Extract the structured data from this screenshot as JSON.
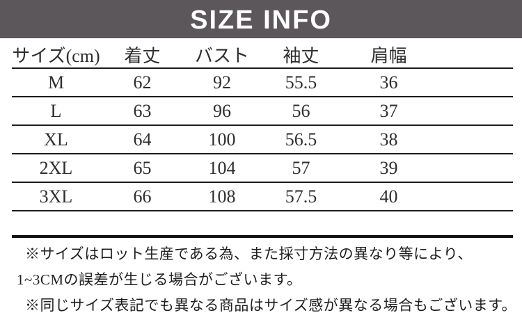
{
  "banner": {
    "title": "SIZE INFO",
    "bg_color": "#5c575b",
    "text_color": "#ffffff"
  },
  "table": {
    "headers": [
      "サイズ(cm)",
      "着丈",
      "バスト",
      "袖丈",
      "肩幅"
    ],
    "rows": [
      [
        "M",
        "62",
        "92",
        "55.5",
        "36"
      ],
      [
        "L",
        "63",
        "96",
        "56",
        "37"
      ],
      [
        "XL",
        "64",
        "100",
        "56.5",
        "38"
      ],
      [
        "2XL",
        "65",
        "104",
        "57",
        "39"
      ],
      [
        "3XL",
        "66",
        "108",
        "57.5",
        "40"
      ]
    ]
  },
  "notes": [
    "※サイズはロット生産である為、また採寸方法の異なり等により、",
    "1~3CMの誤差が生じる場合がございます。",
    "※同じサイズ表記でも異なる商品はサイズ感が異なる場合もございます。"
  ]
}
